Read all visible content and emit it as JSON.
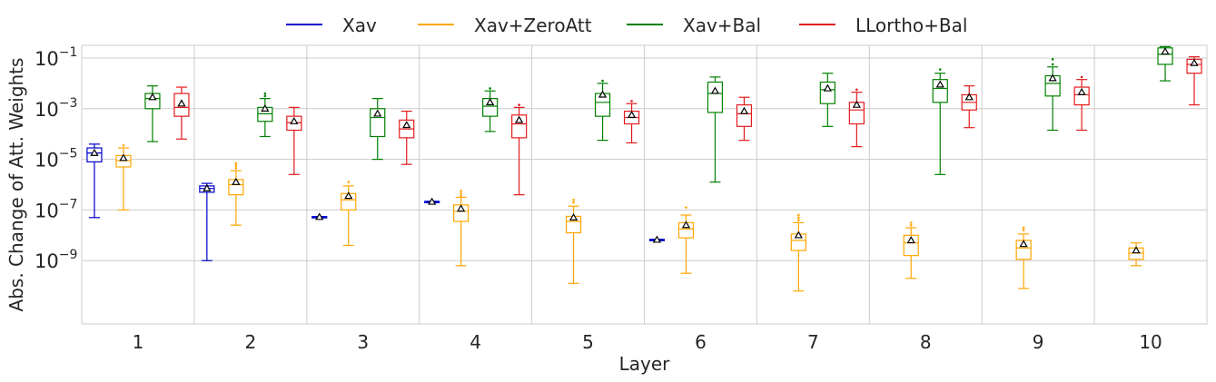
{
  "chart_data": {
    "type": "box",
    "xlabel": "Layer",
    "ylabel": "Abs. Change of Att. Weights",
    "yscale": "log",
    "ylim_log10": [
      -11.5,
      -0.5
    ],
    "yticks": [
      {
        "exp": -1,
        "base": "10",
        "sup": "−1"
      },
      {
        "exp": -3,
        "base": "10",
        "sup": "−3"
      },
      {
        "exp": -5,
        "base": "10",
        "sup": "−5"
      },
      {
        "exp": -7,
        "base": "10",
        "sup": "−7"
      },
      {
        "exp": -9,
        "base": "10",
        "sup": "−9"
      }
    ],
    "categories": [
      "1",
      "2",
      "3",
      "4",
      "5",
      "6",
      "7",
      "8",
      "9",
      "10"
    ],
    "legend_position": "top-center",
    "series": [
      {
        "name": "Xav",
        "color": "#0000cc",
        "boxes": [
          {
            "layer": "1",
            "wlo": -7.3,
            "q1": -5.1,
            "med": -4.75,
            "q3": -4.55,
            "whi": -4.4,
            "mean": -4.75,
            "fliers": []
          },
          {
            "layer": "2",
            "wlo": -9.0,
            "q1": -6.3,
            "med": -6.15,
            "q3": -6.05,
            "whi": -5.95,
            "mean": -6.15,
            "fliers": []
          },
          {
            "layer": "3",
            "wlo": -7.3,
            "q1": -7.3,
            "med": -7.28,
            "q3": -7.26,
            "whi": -7.26,
            "mean": -7.28,
            "fliers": []
          },
          {
            "layer": "4",
            "wlo": -6.7,
            "q1": -6.7,
            "med": -6.68,
            "q3": -6.66,
            "whi": -6.66,
            "mean": -6.68,
            "fliers": []
          },
          null,
          {
            "layer": "6",
            "wlo": -8.2,
            "q1": -8.2,
            "med": -8.18,
            "q3": -8.16,
            "whi": -8.16,
            "mean": -8.18,
            "fliers": []
          },
          null,
          null,
          null,
          null
        ]
      },
      {
        "name": "Xav+ZeroAtt",
        "color": "#ffa500",
        "boxes": [
          {
            "layer": "1",
            "wlo": -7.0,
            "q1": -5.3,
            "med": -5.05,
            "q3": -4.85,
            "whi": -4.55,
            "mean": -4.95,
            "fliers": [
              -4.45
            ]
          },
          {
            "layer": "2",
            "wlo": -7.6,
            "q1": -6.4,
            "med": -6.0,
            "q3": -5.8,
            "whi": -5.45,
            "mean": -5.9,
            "fliers": [
              -5.35,
              -5.25,
              -5.15
            ]
          },
          {
            "layer": "3",
            "wlo": -8.4,
            "q1": -7.0,
            "med": -6.6,
            "q3": -6.35,
            "whi": -6.05,
            "mean": -6.45,
            "fliers": [
              -5.9
            ]
          },
          {
            "layer": "4",
            "wlo": -9.2,
            "q1": -7.45,
            "med": -7.05,
            "q3": -6.8,
            "whi": -6.5,
            "mean": -6.95,
            "fliers": [
              -6.45,
              -6.35,
              -6.25
            ]
          },
          {
            "layer": "5",
            "wlo": -9.9,
            "q1": -7.9,
            "med": -7.45,
            "q3": -7.25,
            "whi": -6.85,
            "mean": -7.3,
            "fliers": [
              -6.7,
              -6.6
            ]
          },
          {
            "layer": "6",
            "wlo": -9.5,
            "q1": -8.1,
            "med": -7.75,
            "q3": -7.5,
            "whi": -7.2,
            "mean": -7.6,
            "fliers": [
              -6.9
            ]
          },
          {
            "layer": "7",
            "wlo": -10.2,
            "q1": -8.6,
            "med": -8.2,
            "q3": -7.95,
            "whi": -7.5,
            "mean": -8.0,
            "fliers": [
              -7.4,
              -7.3,
              -7.2
            ]
          },
          {
            "layer": "8",
            "wlo": -9.7,
            "q1": -8.8,
            "med": -8.3,
            "q3": -8.0,
            "whi": -7.7,
            "mean": -8.2,
            "fliers": [
              -7.6,
              -7.5
            ]
          },
          {
            "layer": "9",
            "wlo": -10.1,
            "q1": -8.95,
            "med": -8.5,
            "q3": -8.2,
            "whi": -7.95,
            "mean": -8.35,
            "fliers": [
              -7.8,
              -7.7
            ]
          },
          {
            "layer": "10",
            "wlo": -9.2,
            "q1": -8.95,
            "med": -8.7,
            "q3": -8.5,
            "whi": -8.3,
            "mean": -8.6,
            "fliers": []
          }
        ]
      },
      {
        "name": "Xav+Bal",
        "color": "#008000",
        "boxes": [
          {
            "layer": "1",
            "wlo": -4.3,
            "q1": -3.0,
            "med": -2.6,
            "q3": -2.4,
            "whi": -2.1,
            "mean": -2.55,
            "fliers": []
          },
          {
            "layer": "2",
            "wlo": -4.1,
            "q1": -3.5,
            "med": -3.2,
            "q3": -2.95,
            "whi": -2.6,
            "mean": -3.0,
            "fliers": [
              -2.5,
              -2.4
            ]
          },
          {
            "layer": "3",
            "wlo": -5.0,
            "q1": -4.1,
            "med": -3.35,
            "q3": -3.0,
            "whi": -2.6,
            "mean": -3.2,
            "fliers": []
          },
          {
            "layer": "4",
            "wlo": -3.9,
            "q1": -3.3,
            "med": -2.9,
            "q3": -2.6,
            "whi": -2.3,
            "mean": -2.75,
            "fliers": [
              -2.2
            ]
          },
          {
            "layer": "5",
            "wlo": -4.25,
            "q1": -3.3,
            "med": -2.75,
            "q3": -2.4,
            "whi": -2.0,
            "mean": -2.45,
            "fliers": [
              -1.9
            ]
          },
          {
            "layer": "6",
            "wlo": -5.9,
            "q1": -3.15,
            "med": -2.4,
            "q3": -1.95,
            "whi": -1.75,
            "mean": -2.3,
            "fliers": []
          },
          {
            "layer": "7",
            "wlo": -3.7,
            "q1": -2.8,
            "med": -2.25,
            "q3": -1.95,
            "whi": -1.6,
            "mean": -2.2,
            "fliers": []
          },
          {
            "layer": "8",
            "wlo": -5.6,
            "q1": -2.75,
            "med": -2.2,
            "q3": -1.85,
            "whi": -1.6,
            "mean": -2.05,
            "fliers": [
              -1.45
            ]
          },
          {
            "layer": "9",
            "wlo": -3.85,
            "q1": -2.5,
            "med": -2.0,
            "q3": -1.7,
            "whi": -1.35,
            "mean": -1.8,
            "fliers": [
              -1.25,
              -1.05
            ]
          },
          {
            "layer": "10",
            "wlo": -1.9,
            "q1": -1.25,
            "med": -0.85,
            "q3": -0.6,
            "whi": -0.55,
            "mean": -0.75,
            "fliers": []
          }
        ]
      },
      {
        "name": "LLortho+Bal",
        "color": "#e31a1c",
        "boxes": [
          {
            "layer": "1",
            "wlo": -4.2,
            "q1": -3.3,
            "med": -2.95,
            "q3": -2.4,
            "whi": -2.15,
            "mean": -2.8,
            "fliers": []
          },
          {
            "layer": "2",
            "wlo": -5.6,
            "q1": -3.85,
            "med": -3.55,
            "q3": -3.3,
            "whi": -2.95,
            "mean": -3.5,
            "fliers": []
          },
          {
            "layer": "3",
            "wlo": -5.2,
            "q1": -4.15,
            "med": -3.8,
            "q3": -3.45,
            "whi": -3.1,
            "mean": -3.65,
            "fliers": []
          },
          {
            "layer": "4",
            "wlo": -6.4,
            "q1": -4.15,
            "med": -3.6,
            "q3": -3.25,
            "whi": -2.95,
            "mean": -3.45,
            "fliers": [
              -2.85
            ]
          },
          {
            "layer": "5",
            "wlo": -4.35,
            "q1": -3.6,
            "med": -3.35,
            "q3": -3.1,
            "whi": -2.8,
            "mean": -3.25,
            "fliers": [
              -2.7
            ]
          },
          {
            "layer": "6",
            "wlo": -4.25,
            "q1": -3.7,
            "med": -3.2,
            "q3": -2.85,
            "whi": -2.55,
            "mean": -3.1,
            "fliers": []
          },
          {
            "layer": "7",
            "wlo": -4.5,
            "q1": -3.6,
            "med": -3.05,
            "q3": -2.75,
            "whi": -2.35,
            "mean": -2.85,
            "fliers": [
              -2.25
            ]
          },
          {
            "layer": "8",
            "wlo": -3.75,
            "q1": -3.05,
            "med": -2.75,
            "q3": -2.45,
            "whi": -2.1,
            "mean": -2.55,
            "fliers": []
          },
          {
            "layer": "9",
            "wlo": -3.85,
            "q1": -2.85,
            "med": -2.45,
            "q3": -2.15,
            "whi": -1.85,
            "mean": -2.35,
            "fliers": [
              -1.75
            ]
          },
          {
            "layer": "10",
            "wlo": -2.85,
            "q1": -1.6,
            "med": -1.25,
            "q3": -1.05,
            "whi": -0.95,
            "mean": -1.2,
            "fliers": []
          }
        ]
      }
    ]
  }
}
